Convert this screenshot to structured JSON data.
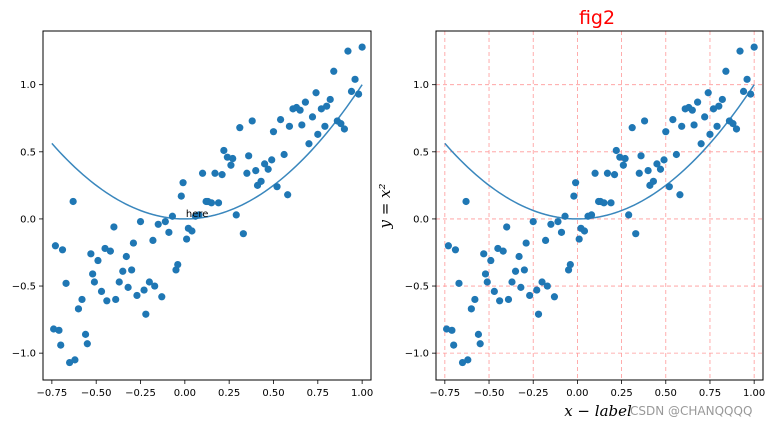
{
  "chart_data": [
    {
      "type": "scatter",
      "title": "",
      "xlabel": "",
      "ylabel": "",
      "xlim": [
        -0.8,
        1.05
      ],
      "ylim": [
        -1.2,
        1.4
      ],
      "xticks": [
        "−0.75",
        "−0.50",
        "−0.25",
        "0.00",
        "0.25",
        "0.50",
        "0.75",
        "1.00"
      ],
      "yticks": [
        "−1.0",
        "−0.5",
        "0.0",
        "0.5",
        "1.0"
      ],
      "xtick_values": [
        -0.75,
        -0.5,
        -0.25,
        0,
        0.25,
        0.5,
        0.75,
        1.0
      ],
      "ytick_values": [
        -1.0,
        -0.5,
        0,
        0.5,
        1.0
      ],
      "grid": false,
      "annotation": {
        "text": "here",
        "x": 0.0,
        "y": 0.0
      },
      "curve": {
        "label": "y = x^2",
        "x_range": [
          -0.75,
          1.0
        ],
        "color": "#3a87bd"
      },
      "point_color": "#1f77b4"
    },
    {
      "type": "scatter",
      "title": "fig2",
      "xlabel": "x − label",
      "ylabel": "y = x²",
      "xlim": [
        -0.8,
        1.05
      ],
      "ylim": [
        -1.2,
        1.4
      ],
      "xticks": [
        "−0.75",
        "−0.50",
        "−0.25",
        "0.00",
        "0.25",
        "0.50",
        "0.75",
        "1.00"
      ],
      "yticks": [
        "−1.0",
        "−0.5",
        "0.0",
        "0.5",
        "1.0"
      ],
      "xtick_values": [
        -0.75,
        -0.5,
        -0.25,
        0,
        0.25,
        0.5,
        0.75,
        1.0
      ],
      "ytick_values": [
        -1.0,
        -0.5,
        0,
        0.5,
        1.0
      ],
      "grid": true,
      "grid_color": "#ff9999",
      "curve": {
        "label": "y = x^2",
        "x_range": [
          -0.75,
          1.0
        ],
        "color": "#3a87bd"
      },
      "point_color": "#1f77b4"
    }
  ],
  "scatter_points": [
    [
      -0.74,
      -0.82
    ],
    [
      -0.73,
      -0.2
    ],
    [
      -0.71,
      -0.83
    ],
    [
      -0.7,
      -0.94
    ],
    [
      -0.69,
      -0.23
    ],
    [
      -0.67,
      -0.48
    ],
    [
      -0.65,
      -1.07
    ],
    [
      -0.63,
      0.13
    ],
    [
      -0.62,
      -1.05
    ],
    [
      -0.6,
      -0.67
    ],
    [
      -0.58,
      -0.6
    ],
    [
      -0.56,
      -0.86
    ],
    [
      -0.55,
      -0.93
    ],
    [
      -0.53,
      -0.26
    ],
    [
      -0.52,
      -0.41
    ],
    [
      -0.51,
      -0.47
    ],
    [
      -0.49,
      -0.31
    ],
    [
      -0.47,
      -0.54
    ],
    [
      -0.45,
      -0.22
    ],
    [
      -0.44,
      -0.61
    ],
    [
      -0.42,
      -0.24
    ],
    [
      -0.4,
      -0.06
    ],
    [
      -0.39,
      -0.6
    ],
    [
      -0.37,
      -0.47
    ],
    [
      -0.35,
      -0.39
    ],
    [
      -0.33,
      -0.28
    ],
    [
      -0.32,
      -0.51
    ],
    [
      -0.3,
      -0.38
    ],
    [
      -0.29,
      -0.18
    ],
    [
      -0.27,
      -0.57
    ],
    [
      -0.25,
      -0.02
    ],
    [
      -0.23,
      -0.53
    ],
    [
      -0.22,
      -0.71
    ],
    [
      -0.2,
      -0.47
    ],
    [
      -0.18,
      -0.16
    ],
    [
      -0.17,
      -0.5
    ],
    [
      -0.15,
      -0.04
    ],
    [
      -0.13,
      -0.58
    ],
    [
      -0.11,
      -0.02
    ],
    [
      -0.09,
      -0.1
    ],
    [
      -0.07,
      0.02
    ],
    [
      -0.05,
      -0.38
    ],
    [
      -0.04,
      -0.34
    ],
    [
      -0.02,
      0.17
    ],
    [
      -0.01,
      0.27
    ],
    [
      0.01,
      -0.15
    ],
    [
      0.02,
      -0.07
    ],
    [
      0.04,
      -0.09
    ],
    [
      0.06,
      0.02
    ],
    [
      0.08,
      0.03
    ],
    [
      0.1,
      0.34
    ],
    [
      0.12,
      0.13
    ],
    [
      0.13,
      0.13
    ],
    [
      0.15,
      0.12
    ],
    [
      0.17,
      0.34
    ],
    [
      0.19,
      0.12
    ],
    [
      0.21,
      0.33
    ],
    [
      0.22,
      0.51
    ],
    [
      0.24,
      0.46
    ],
    [
      0.26,
      0.4
    ],
    [
      0.27,
      0.45
    ],
    [
      0.29,
      0.03
    ],
    [
      0.31,
      0.68
    ],
    [
      0.33,
      -0.11
    ],
    [
      0.35,
      0.34
    ],
    [
      0.36,
      0.47
    ],
    [
      0.38,
      0.73
    ],
    [
      0.4,
      0.36
    ],
    [
      0.41,
      0.25
    ],
    [
      0.43,
      0.28
    ],
    [
      0.45,
      0.41
    ],
    [
      0.47,
      0.37
    ],
    [
      0.49,
      0.44
    ],
    [
      0.5,
      0.65
    ],
    [
      0.52,
      0.24
    ],
    [
      0.54,
      0.74
    ],
    [
      0.56,
      0.48
    ],
    [
      0.58,
      0.18
    ],
    [
      0.59,
      0.69
    ],
    [
      0.61,
      0.82
    ],
    [
      0.63,
      0.83
    ],
    [
      0.65,
      0.81
    ],
    [
      0.66,
      0.7
    ],
    [
      0.68,
      0.87
    ],
    [
      0.7,
      0.56
    ],
    [
      0.72,
      0.76
    ],
    [
      0.74,
      0.94
    ],
    [
      0.75,
      0.63
    ],
    [
      0.77,
      0.82
    ],
    [
      0.79,
      0.69
    ],
    [
      0.8,
      0.84
    ],
    [
      0.82,
      0.89
    ],
    [
      0.84,
      1.1
    ],
    [
      0.86,
      0.73
    ],
    [
      0.88,
      0.71
    ],
    [
      0.9,
      0.67
    ],
    [
      0.92,
      1.25
    ],
    [
      0.94,
      0.95
    ],
    [
      0.96,
      1.04
    ],
    [
      0.98,
      0.93
    ],
    [
      1.0,
      1.28
    ]
  ],
  "watermark": "CSDN @CHANQQQQ"
}
